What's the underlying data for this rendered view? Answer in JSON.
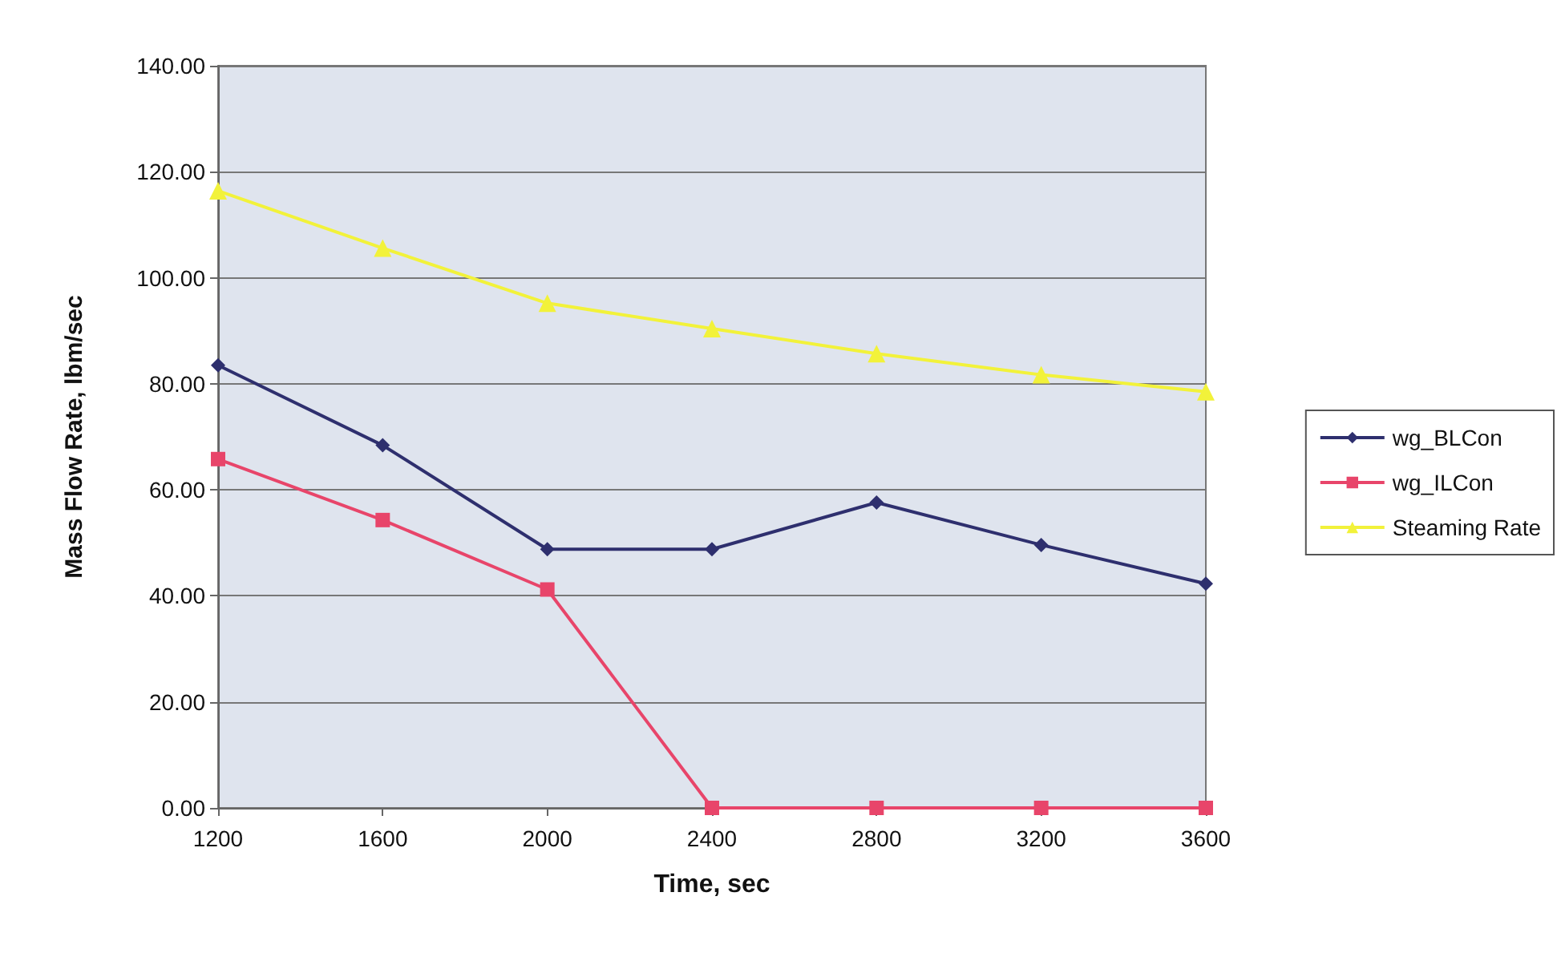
{
  "chart_data": {
    "type": "line",
    "xlabel": "Time, sec",
    "ylabel": "Mass Flow Rate, lbm/sec",
    "categories": [
      "1200",
      "1600",
      "2000",
      "2400",
      "2800",
      "3200",
      "3600"
    ],
    "series": [
      {
        "name": "wg_BLCon",
        "color": "#2e2f6e",
        "marker": "diamond",
        "values": [
          83.5,
          68.4,
          48.8,
          48.8,
          57.6,
          49.6,
          42.3
        ]
      },
      {
        "name": "wg_ILCon",
        "color": "#e8456a",
        "marker": "square",
        "values": [
          65.8,
          54.3,
          41.2,
          0,
          0,
          0,
          0
        ]
      },
      {
        "name": "Steaming Rate",
        "color": "#f2f23a",
        "marker": "triangle",
        "values": [
          116.4,
          105.6,
          95.2,
          90.4,
          85.7,
          81.7,
          78.5
        ]
      }
    ],
    "ylim": [
      0,
      140
    ],
    "yticks": [
      {
        "value": 0,
        "label": "0.00"
      },
      {
        "value": 20,
        "label": "20.00"
      },
      {
        "value": 40,
        "label": "40.00"
      },
      {
        "value": 60,
        "label": "60.00"
      },
      {
        "value": 80,
        "label": "80.00"
      },
      {
        "value": 100,
        "label": "100.00"
      },
      {
        "value": 120,
        "label": "120.00"
      },
      {
        "value": 140,
        "label": "140.00"
      }
    ],
    "grid": "y",
    "legend": "right",
    "line_style": "solid"
  }
}
